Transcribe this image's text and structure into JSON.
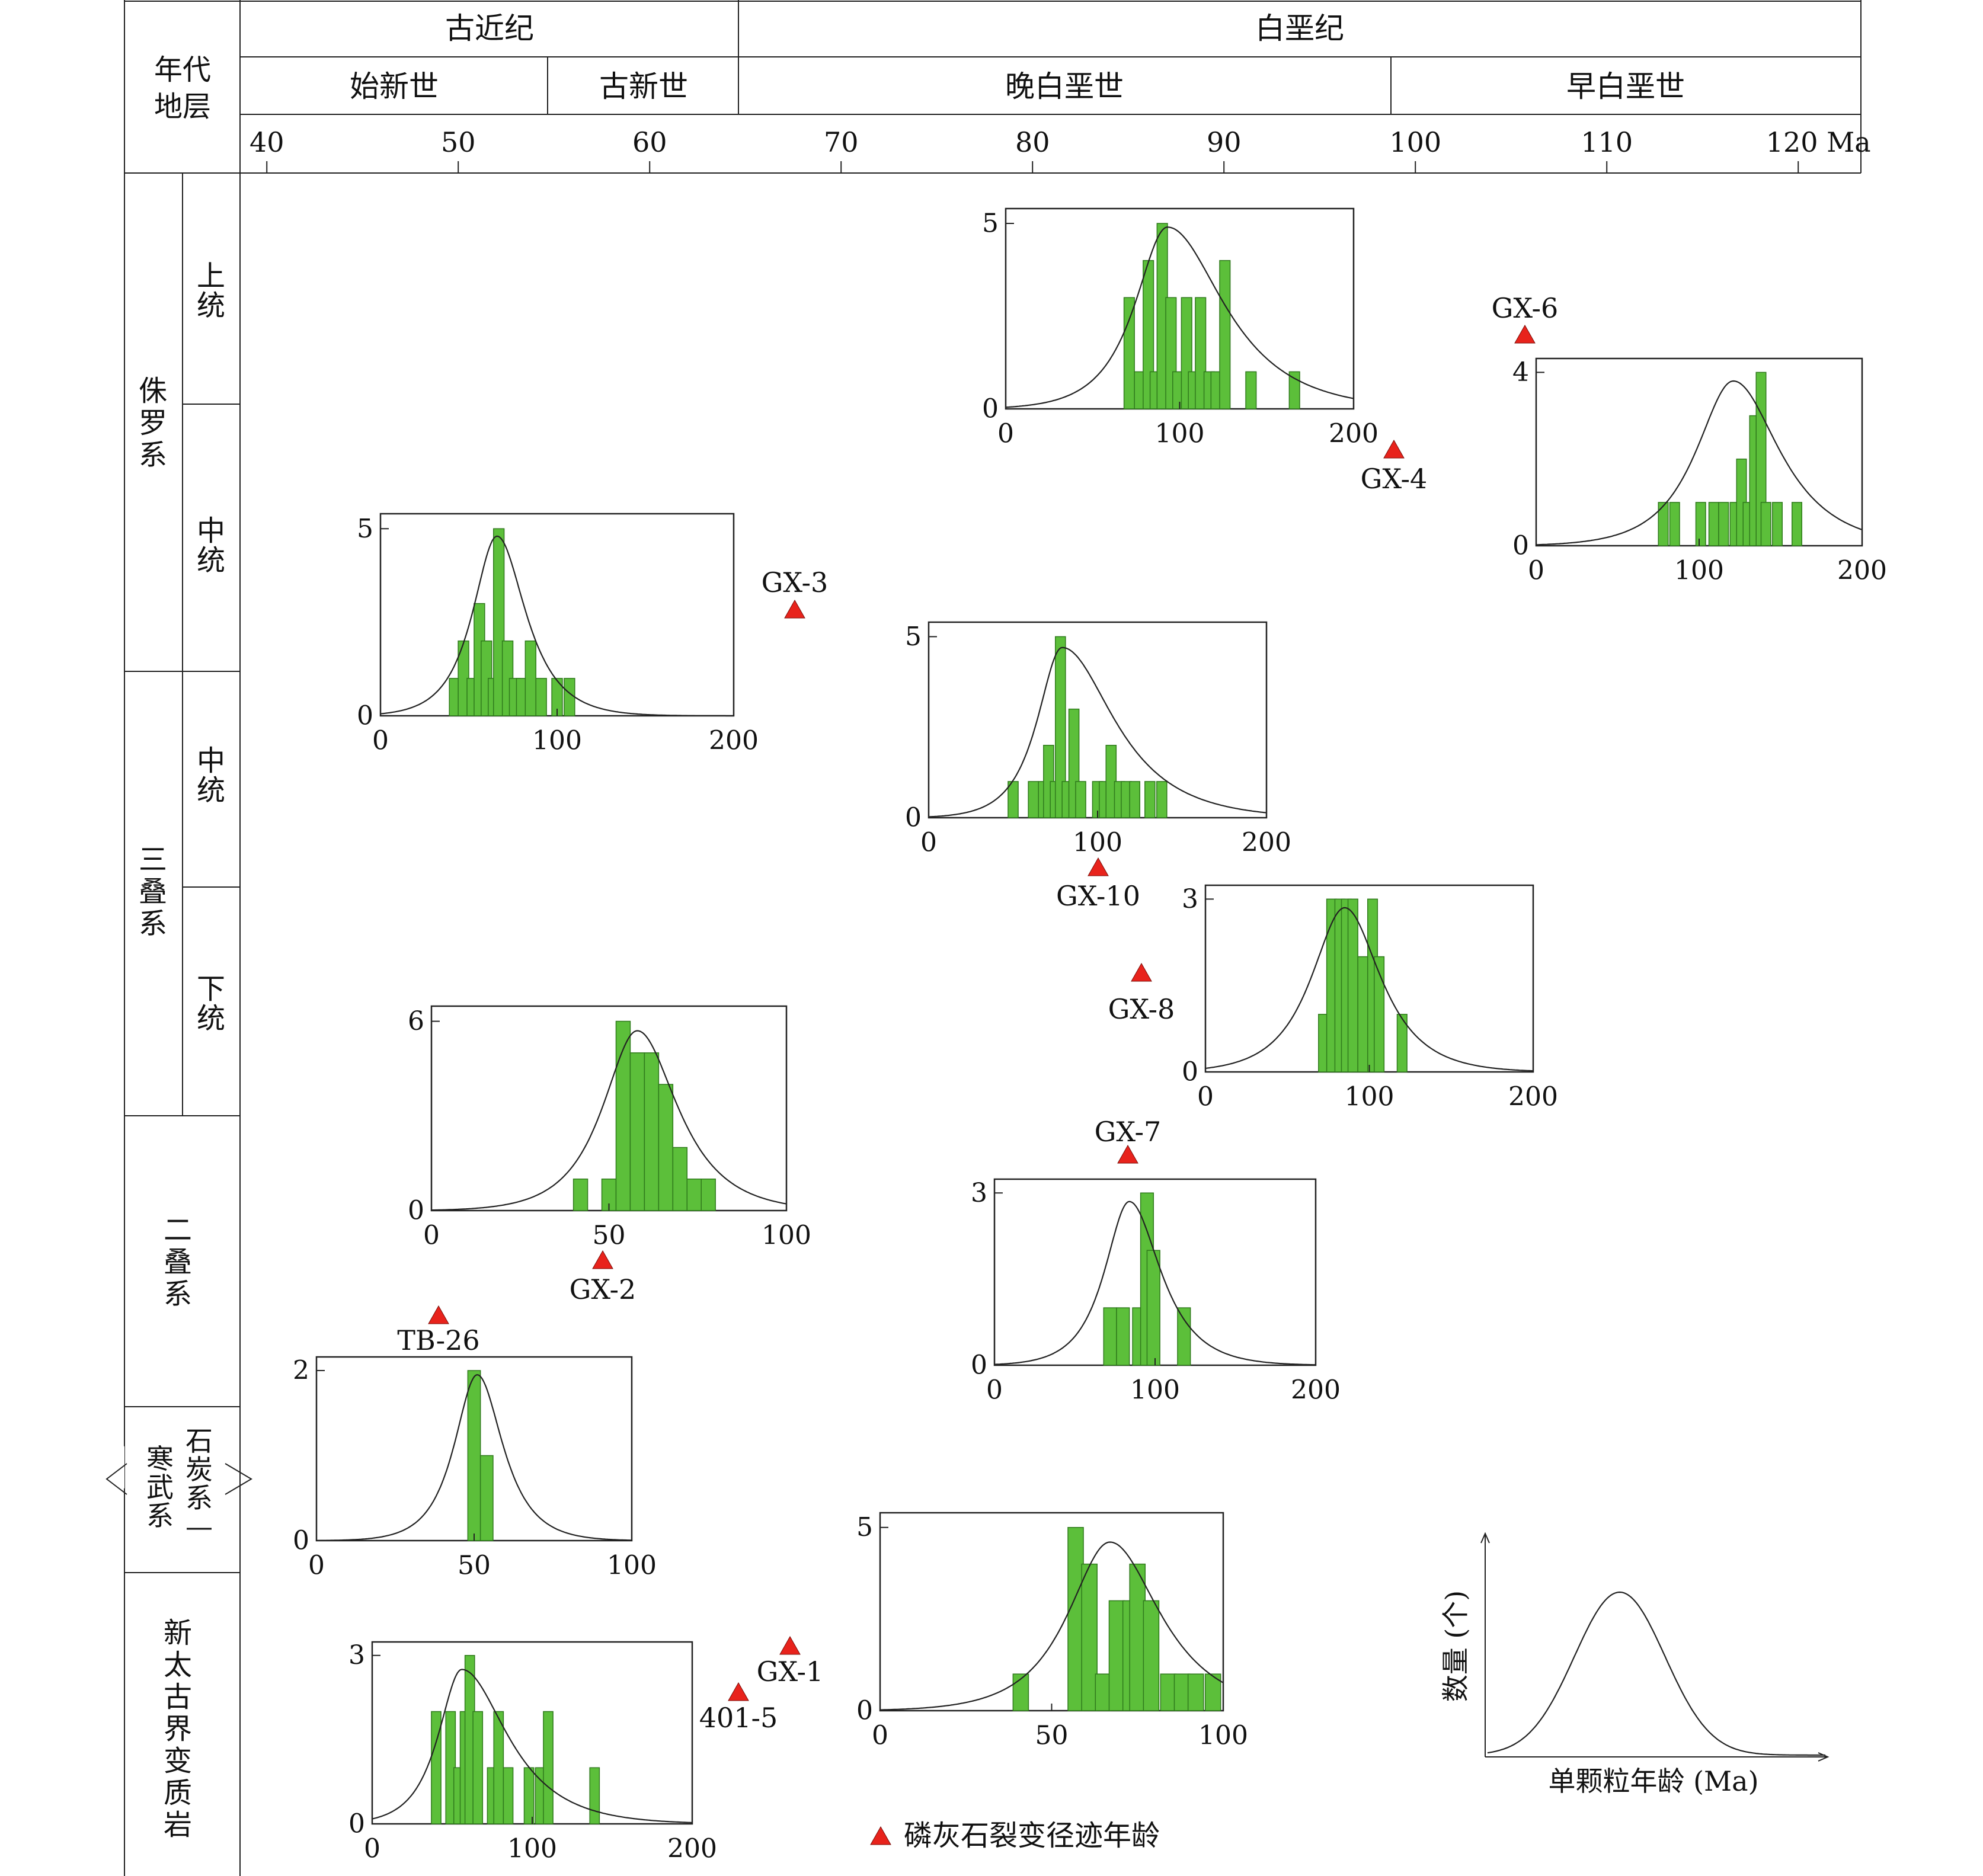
{
  "header": {
    "stratum_label": "年代\n地层",
    "periods": [
      {
        "label": "古近纪"
      },
      {
        "label": "白垩纪"
      }
    ],
    "epochs": [
      {
        "label": "始新世"
      },
      {
        "label": "古新世"
      },
      {
        "label": "晚白垩世"
      },
      {
        "label": "早白垩世"
      }
    ],
    "age_ticks": [
      {
        "value": 40,
        "label": "40"
      },
      {
        "value": 50,
        "label": "50"
      },
      {
        "value": 60,
        "label": "60"
      },
      {
        "value": 70,
        "label": "70"
      },
      {
        "value": 80,
        "label": "80"
      },
      {
        "value": 90,
        "label": "90"
      },
      {
        "value": 100,
        "label": "100"
      },
      {
        "value": 110,
        "label": "110"
      },
      {
        "value": 120,
        "label": "120 Ma"
      }
    ]
  },
  "stratigraphy": {
    "systems": [
      {
        "label": "侏罗系",
        "series": [
          "上统",
          "中统"
        ]
      },
      {
        "label": "三叠系",
        "series": [
          "中统",
          "下统"
        ]
      },
      {
        "label": "二叠系",
        "series": []
      },
      {
        "label": "石炭系—",
        "series": []
      },
      {
        "label": "寒武系",
        "series": []
      },
      {
        "label": "新太古界变质岩",
        "series": []
      }
    ]
  },
  "samples": [
    {
      "id": "GX-6",
      "label": "GX-6"
    },
    {
      "id": "GX-4",
      "label": "GX-4"
    },
    {
      "id": "GX-3",
      "label": "GX-3"
    },
    {
      "id": "GX-10",
      "label": "GX-10"
    },
    {
      "id": "GX-8",
      "label": "GX-8"
    },
    {
      "id": "GX-7",
      "label": "GX-7"
    },
    {
      "id": "GX-2",
      "label": "GX-2"
    },
    {
      "id": "TB-26",
      "label": "TB-26"
    },
    {
      "id": "GX-1",
      "label": "GX-1"
    },
    {
      "id": "401-5",
      "label": "401-5"
    }
  ],
  "legend": {
    "marker_label": "磷灰石裂变径迹年龄",
    "marker_color": "#e8231c",
    "schematic_ylabel": "数量 (个)",
    "schematic_xlabel": "单颗粒年龄 (Ma)"
  },
  "colors": {
    "bar": "#5cbf3a",
    "bar_stroke": "#2f7a1c",
    "curve": "#222222",
    "frame": "#222222"
  },
  "chart_data": [
    {
      "type": "bar",
      "name": "GX-4 single-grain age histogram",
      "xlim": [
        0,
        200
      ],
      "ylim": [
        0,
        5
      ],
      "xticks": [
        0,
        100,
        200
      ],
      "yticks": [
        0,
        5
      ],
      "bin_width": 6,
      "bars": [
        [
          71,
          3
        ],
        [
          77,
          1
        ],
        [
          82,
          4
        ],
        [
          86,
          1
        ],
        [
          90,
          5
        ],
        [
          95,
          3
        ],
        [
          99,
          1
        ],
        [
          104,
          3
        ],
        [
          108,
          1
        ],
        [
          112,
          3
        ],
        [
          117,
          1
        ],
        [
          121,
          1
        ],
        [
          126,
          4
        ],
        [
          141,
          1
        ],
        [
          166,
          1
        ]
      ],
      "curve": {
        "peak": 93,
        "left_sigma": 23,
        "right_sigma": 40,
        "height": 4.9
      }
    },
    {
      "type": "bar",
      "name": "GX-6 single-grain age histogram",
      "xlim": [
        0,
        200
      ],
      "ylim": [
        0,
        4
      ],
      "xticks": [
        0,
        100,
        200
      ],
      "yticks": [
        0,
        4
      ],
      "bin_width": 6,
      "bars": [
        [
          78,
          1
        ],
        [
          85,
          1
        ],
        [
          101,
          1
        ],
        [
          109,
          1
        ],
        [
          115,
          1
        ],
        [
          122,
          1
        ],
        [
          126,
          2
        ],
        [
          130,
          1
        ],
        [
          134,
          3
        ],
        [
          138,
          4
        ],
        [
          141,
          1
        ],
        [
          148,
          1
        ],
        [
          160,
          1
        ]
      ],
      "curve": {
        "peak": 121,
        "left_sigma": 28,
        "right_sigma": 35,
        "height": 3.8
      }
    },
    {
      "type": "bar",
      "name": "GX-3 single-grain age histogram",
      "xlim": [
        0,
        200
      ],
      "ylim": [
        0,
        5
      ],
      "xticks": [
        0,
        100,
        200
      ],
      "yticks": [
        0,
        5
      ],
      "bin_width": 6,
      "bars": [
        [
          42,
          1
        ],
        [
          47,
          2
        ],
        [
          52,
          1
        ],
        [
          56,
          3
        ],
        [
          60,
          2
        ],
        [
          64,
          1
        ],
        [
          67,
          5
        ],
        [
          72,
          2
        ],
        [
          76,
          1
        ],
        [
          80,
          1
        ],
        [
          85,
          2
        ],
        [
          91,
          1
        ],
        [
          100,
          1
        ],
        [
          107,
          1
        ]
      ],
      "curve": {
        "peak": 66,
        "left_sigma": 17,
        "right_sigma": 20,
        "height": 4.8
      }
    },
    {
      "type": "bar",
      "name": "GX-10 single-grain age histogram",
      "xlim": [
        0,
        200
      ],
      "ylim": [
        0,
        5
      ],
      "xticks": [
        0,
        100,
        200
      ],
      "yticks": [
        0,
        5
      ],
      "bin_width": 6,
      "bars": [
        [
          50,
          1
        ],
        [
          62,
          1
        ],
        [
          68,
          1
        ],
        [
          71,
          2
        ],
        [
          75,
          1
        ],
        [
          78,
          5
        ],
        [
          82,
          1
        ],
        [
          86,
          3
        ],
        [
          90,
          1
        ],
        [
          100,
          1
        ],
        [
          104,
          1
        ],
        [
          108,
          2
        ],
        [
          113,
          1
        ],
        [
          117,
          1
        ],
        [
          122,
          1
        ],
        [
          131,
          1
        ],
        [
          138,
          1
        ]
      ],
      "curve": {
        "peak": 79,
        "left_sigma": 18,
        "right_sigma": 38,
        "height": 4.7
      }
    },
    {
      "type": "bar",
      "name": "GX-8 single-grain age histogram",
      "xlim": [
        0,
        200
      ],
      "ylim": [
        0,
        3
      ],
      "xticks": [
        0,
        100,
        200
      ],
      "yticks": [
        0,
        3
      ],
      "bin_width": 6,
      "bars": [
        [
          72,
          1
        ],
        [
          77,
          3
        ],
        [
          82,
          3
        ],
        [
          86,
          3
        ],
        [
          90,
          3
        ],
        [
          96,
          2
        ],
        [
          102,
          3
        ],
        [
          106,
          2
        ],
        [
          120,
          1
        ]
      ],
      "curve": {
        "peak": 85,
        "left_sigma": 25,
        "right_sigma": 27,
        "height": 2.85
      }
    },
    {
      "type": "bar",
      "name": "GX-2 single-grain age histogram",
      "xlim": [
        0,
        100
      ],
      "ylim": [
        0,
        6
      ],
      "xticks": [
        0,
        50,
        100
      ],
      "yticks": [
        0,
        6
      ],
      "bin_width": 4,
      "bars": [
        [
          42,
          1
        ],
        [
          50,
          1
        ],
        [
          54,
          6
        ],
        [
          58,
          5
        ],
        [
          62,
          5
        ],
        [
          66,
          4
        ],
        [
          70,
          2
        ],
        [
          74,
          1
        ],
        [
          78,
          1
        ]
      ],
      "curve": {
        "peak": 58,
        "left_sigma": 12,
        "right_sigma": 14,
        "height": 5.7
      }
    },
    {
      "type": "bar",
      "name": "GX-7 single-grain age histogram",
      "xlim": [
        0,
        200
      ],
      "ylim": [
        0,
        3
      ],
      "xticks": [
        0,
        100,
        200
      ],
      "yticks": [
        0,
        3
      ],
      "bin_width": 8,
      "bars": [
        [
          72,
          1
        ],
        [
          80,
          1
        ],
        [
          90,
          1
        ],
        [
          95,
          3
        ],
        [
          99,
          2
        ],
        [
          118,
          1
        ]
      ],
      "curve": {
        "peak": 84,
        "left_sigma": 19,
        "right_sigma": 24,
        "height": 2.85
      }
    },
    {
      "type": "bar",
      "name": "TB-26 single-grain age histogram",
      "xlim": [
        0,
        100
      ],
      "ylim": [
        0,
        2
      ],
      "xticks": [
        0,
        50,
        100
      ],
      "yticks": [
        0,
        2
      ],
      "bin_width": 4,
      "bars": [
        [
          50,
          2
        ],
        [
          54,
          1
        ]
      ],
      "curve": {
        "peak": 51,
        "left_sigma": 9,
        "right_sigma": 10,
        "height": 1.95
      }
    },
    {
      "type": "bar",
      "name": "401-5 single-grain age histogram",
      "xlim": [
        0,
        200
      ],
      "ylim": [
        0,
        3
      ],
      "xticks": [
        0,
        100,
        200
      ],
      "yticks": [
        0,
        3
      ],
      "bin_width": 6,
      "bars": [
        [
          40,
          2
        ],
        [
          49,
          2
        ],
        [
          54,
          1
        ],
        [
          58,
          2
        ],
        [
          61,
          3
        ],
        [
          66,
          2
        ],
        [
          75,
          1
        ],
        [
          79,
          2
        ],
        [
          85,
          1
        ],
        [
          98,
          1
        ],
        [
          105,
          1
        ],
        [
          110,
          2
        ],
        [
          139,
          1
        ]
      ],
      "curve": {
        "peak": 56,
        "left_sigma": 18,
        "right_sigma": 35,
        "height": 2.75
      }
    },
    {
      "type": "bar",
      "name": "GX-1 single-grain age histogram",
      "xlim": [
        0,
        100
      ],
      "ylim": [
        0,
        5
      ],
      "xticks": [
        0,
        50,
        100
      ],
      "yticks": [
        0,
        5
      ],
      "bin_width": 4.5,
      "bars": [
        [
          41,
          1
        ],
        [
          57,
          5
        ],
        [
          61,
          4
        ],
        [
          65,
          1
        ],
        [
          69,
          3
        ],
        [
          73,
          3
        ],
        [
          75,
          4
        ],
        [
          79,
          3
        ],
        [
          84,
          1
        ],
        [
          88,
          1
        ],
        [
          92,
          1
        ],
        [
          97,
          1
        ]
      ],
      "curve": {
        "peak": 67,
        "left_sigma": 15,
        "right_sigma": 18,
        "height": 4.6
      }
    }
  ]
}
